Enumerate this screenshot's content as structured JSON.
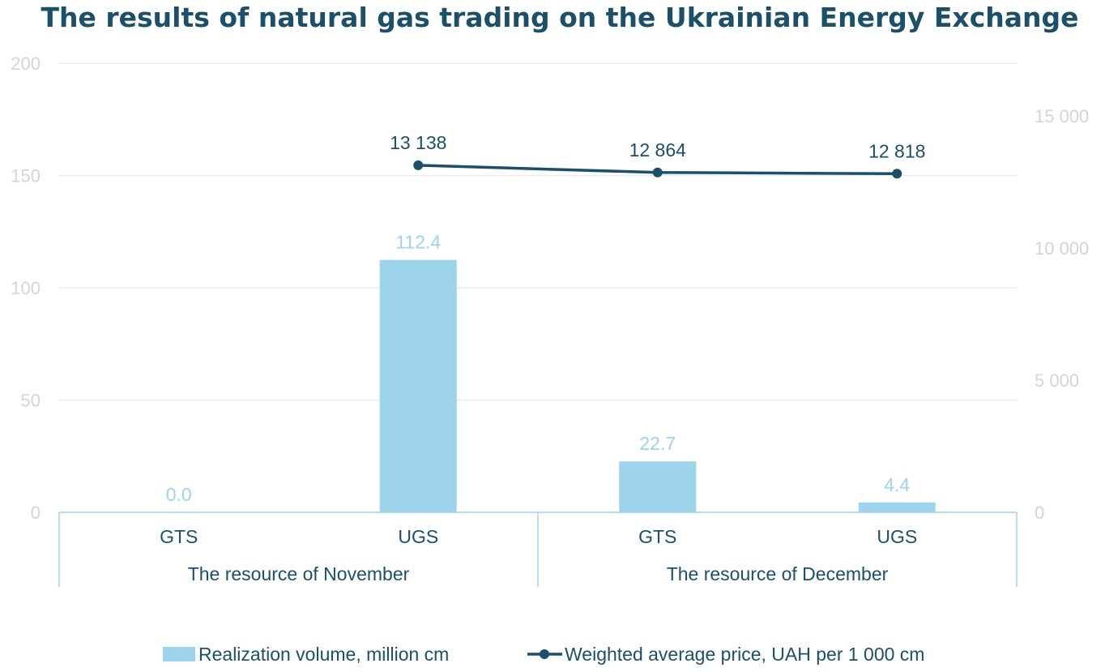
{
  "chart_data": {
    "type": "bar",
    "title": "The results of natural gas trading on the Ukrainian Energy Exchange",
    "categories": [
      "GTS",
      "UGS",
      "GTS",
      "UGS"
    ],
    "groups": [
      {
        "label": "The resource of November",
        "span": 2
      },
      {
        "label": "The resource of December",
        "span": 2
      }
    ],
    "series": [
      {
        "name": "Realization volume, million cm",
        "type": "bar",
        "axis": "left",
        "values": [
          0.0,
          112.4,
          22.7,
          4.4
        ],
        "labels": [
          "0.0",
          "112.4",
          "22.7",
          "4.4"
        ],
        "color": "#9ed3ec"
      },
      {
        "name": "Weighted average price, UAH per 1 000 cm",
        "type": "line",
        "axis": "right",
        "values": [
          null,
          13138,
          12864,
          12818
        ],
        "labels": [
          null,
          "13 138",
          "12 864",
          "12 818"
        ],
        "color": "#1b5068"
      }
    ],
    "y_left": {
      "ylim": [
        0,
        200
      ],
      "ticks": [
        0,
        50,
        100,
        150,
        200
      ],
      "tick_labels": [
        "0",
        "50",
        "100",
        "150",
        "200"
      ]
    },
    "y_right": {
      "ylim": [
        0,
        17000
      ],
      "ticks": [
        0,
        5000,
        10000,
        15000
      ],
      "tick_labels": [
        "0",
        "5 000",
        "10 000",
        "15 000"
      ]
    },
    "grid": true,
    "legend_position": "bottom",
    "xlabel": "",
    "ylabel": ""
  }
}
